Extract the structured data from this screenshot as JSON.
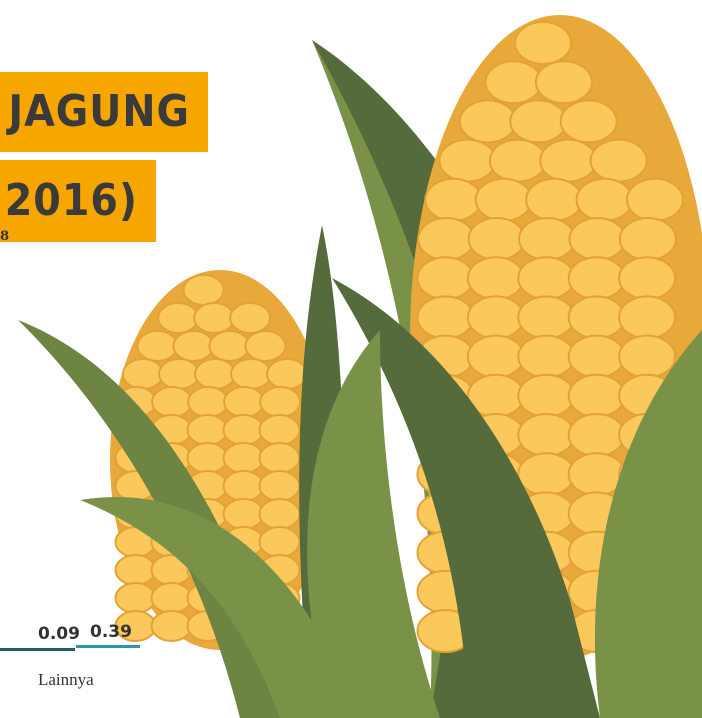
{
  "header": {
    "title_line1": "JAGUNG",
    "title_line2": "2016)",
    "fragment": "8"
  },
  "stats": {
    "items": [
      {
        "value": "0.09"
      },
      {
        "value": "0.39"
      }
    ],
    "label": "Lainnya"
  }
}
